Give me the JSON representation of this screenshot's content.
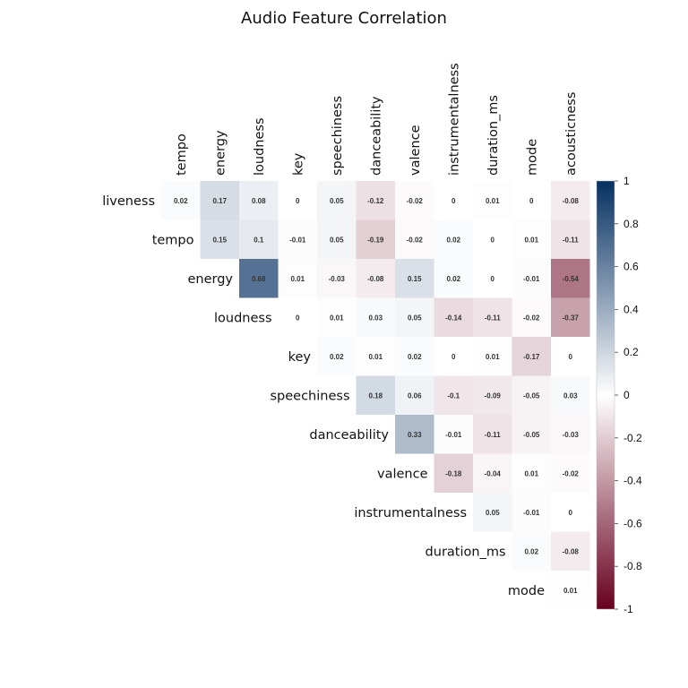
{
  "chart_data": {
    "type": "heatmap",
    "title": "Audio Feature Correlation",
    "matrix_shape": "upper-triangle",
    "row_labels": [
      "liveness",
      "tempo",
      "energy",
      "loudness",
      "key",
      "speechiness",
      "danceability",
      "valence",
      "instrumentalness",
      "duration_ms",
      "mode"
    ],
    "col_labels": [
      "tempo",
      "energy",
      "loudness",
      "key",
      "speechiness",
      "danceability",
      "valence",
      "instrumentalness",
      "duration_ms",
      "mode",
      "acousticness"
    ],
    "values": [
      [
        0.02,
        0.17,
        0.08,
        0,
        0.05,
        -0.12,
        -0.02,
        0,
        0.01,
        0,
        -0.08
      ],
      [
        null,
        0.15,
        0.1,
        -0.01,
        0.05,
        -0.19,
        -0.02,
        0.02,
        0,
        0.01,
        -0.11
      ],
      [
        null,
        null,
        0.68,
        0.01,
        -0.03,
        -0.08,
        0.15,
        0.02,
        0,
        -0.01,
        -0.54
      ],
      [
        null,
        null,
        null,
        0,
        0.01,
        0.03,
        0.05,
        -0.14,
        -0.11,
        -0.02,
        -0.37
      ],
      [
        null,
        null,
        null,
        null,
        0.02,
        0.01,
        0.02,
        0,
        0.01,
        -0.17,
        0
      ],
      [
        null,
        null,
        null,
        null,
        null,
        0.18,
        0.06,
        -0.1,
        -0.09,
        -0.05,
        0.03
      ],
      [
        null,
        null,
        null,
        null,
        null,
        null,
        0.33,
        -0.01,
        -0.11,
        -0.05,
        -0.03
      ],
      [
        null,
        null,
        null,
        null,
        null,
        null,
        null,
        -0.18,
        -0.04,
        0.01,
        -0.02
      ],
      [
        null,
        null,
        null,
        null,
        null,
        null,
        null,
        null,
        0.05,
        -0.01,
        0
      ],
      [
        null,
        null,
        null,
        null,
        null,
        null,
        null,
        null,
        null,
        0.02,
        -0.08
      ],
      [
        null,
        null,
        null,
        null,
        null,
        null,
        null,
        null,
        null,
        null,
        0.01
      ]
    ],
    "color_scale": {
      "min": -1,
      "max": 1,
      "low_color": "#67001f",
      "mid_color": "#ffffff",
      "high_color": "#053061",
      "ticks": [
        "1",
        "0.8",
        "0.6",
        "0.4",
        "0.2",
        "0",
        "-0.2",
        "-0.4",
        "-0.6",
        "-0.8",
        "-1"
      ]
    },
    "legend": "right"
  }
}
